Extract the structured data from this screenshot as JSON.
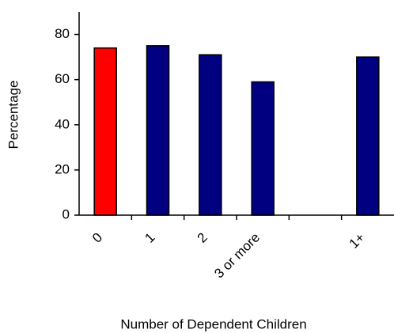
{
  "chart_data": {
    "type": "bar",
    "x_label": "Number of Dependent Children",
    "y_label": "Percentage",
    "categories": [
      "0",
      "1",
      "2",
      "3 or more",
      null,
      "1+"
    ],
    "values": [
      74,
      75,
      71,
      59,
      null,
      70
    ],
    "colors": [
      "#ff0000",
      "#000080",
      "#000080",
      "#000080",
      "#000080",
      "#000080"
    ],
    "ylim": [
      0,
      90
    ],
    "yticks": [
      0,
      20,
      40,
      60,
      80
    ]
  }
}
